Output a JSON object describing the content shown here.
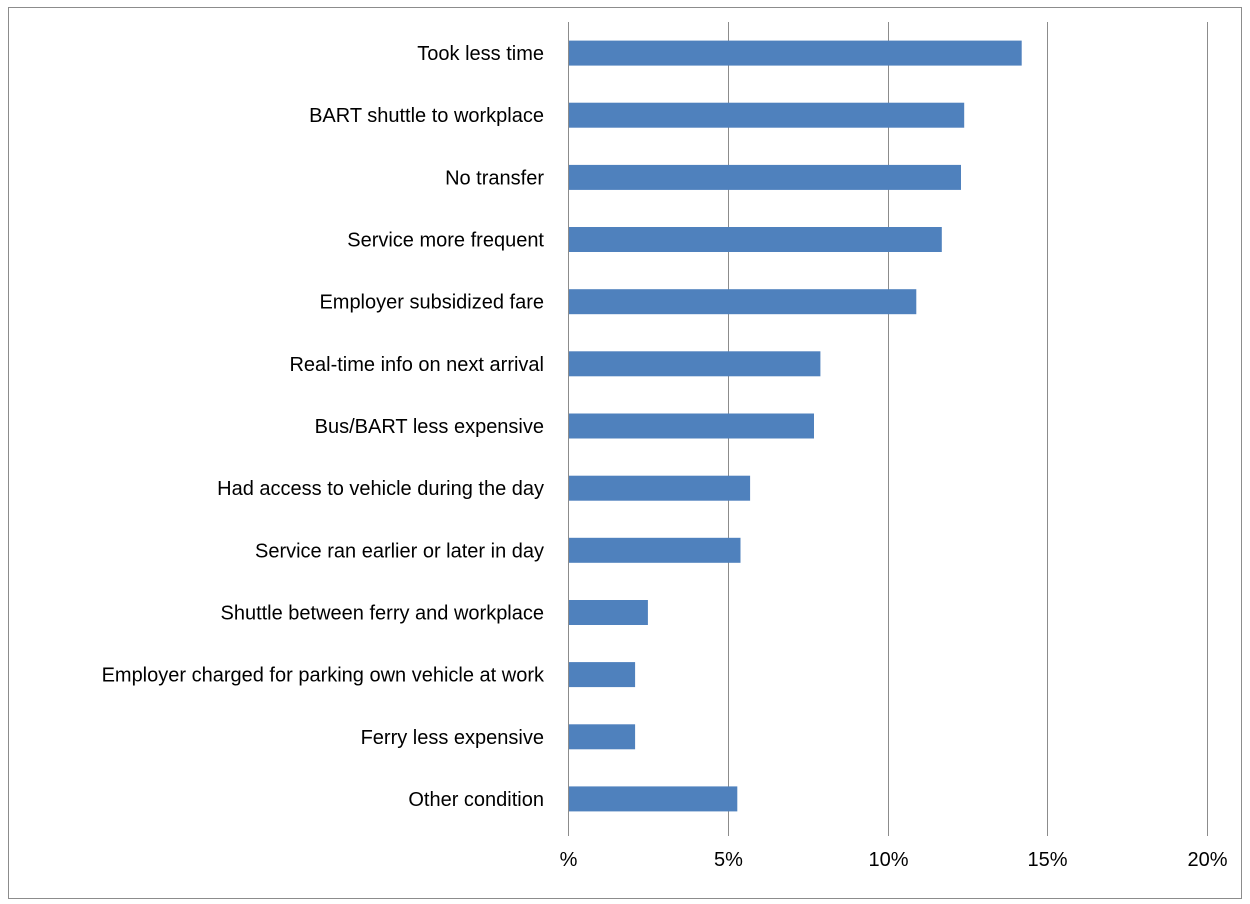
{
  "chart_data": {
    "type": "bar",
    "orientation": "horizontal",
    "title": "",
    "xlabel": "",
    "ylabel": "",
    "categories": [
      "Took less time",
      "BART shuttle to workplace",
      "No transfer",
      "Service more frequent",
      "Employer subsidized fare",
      "Real-time info on next arrival",
      "Bus/BART less expensive",
      "Had access to vehicle during the day",
      "Service ran earlier or later in day",
      "Shuttle between ferry and workplace",
      "Employer charged for parking own vehicle at work",
      "Ferry less expensive",
      "Other condition"
    ],
    "values": [
      14.2,
      12.4,
      12.3,
      11.7,
      10.9,
      7.9,
      7.7,
      5.7,
      5.4,
      2.5,
      2.1,
      2.1,
      5.3
    ],
    "xlim": [
      0,
      20
    ],
    "ticks": [
      0,
      5,
      10,
      15,
      20
    ],
    "tick_labels": [
      "%",
      "5%",
      "10%",
      "15%",
      "20%"
    ],
    "grid": true,
    "legend": "none",
    "bar_color": "#4f81bd"
  }
}
